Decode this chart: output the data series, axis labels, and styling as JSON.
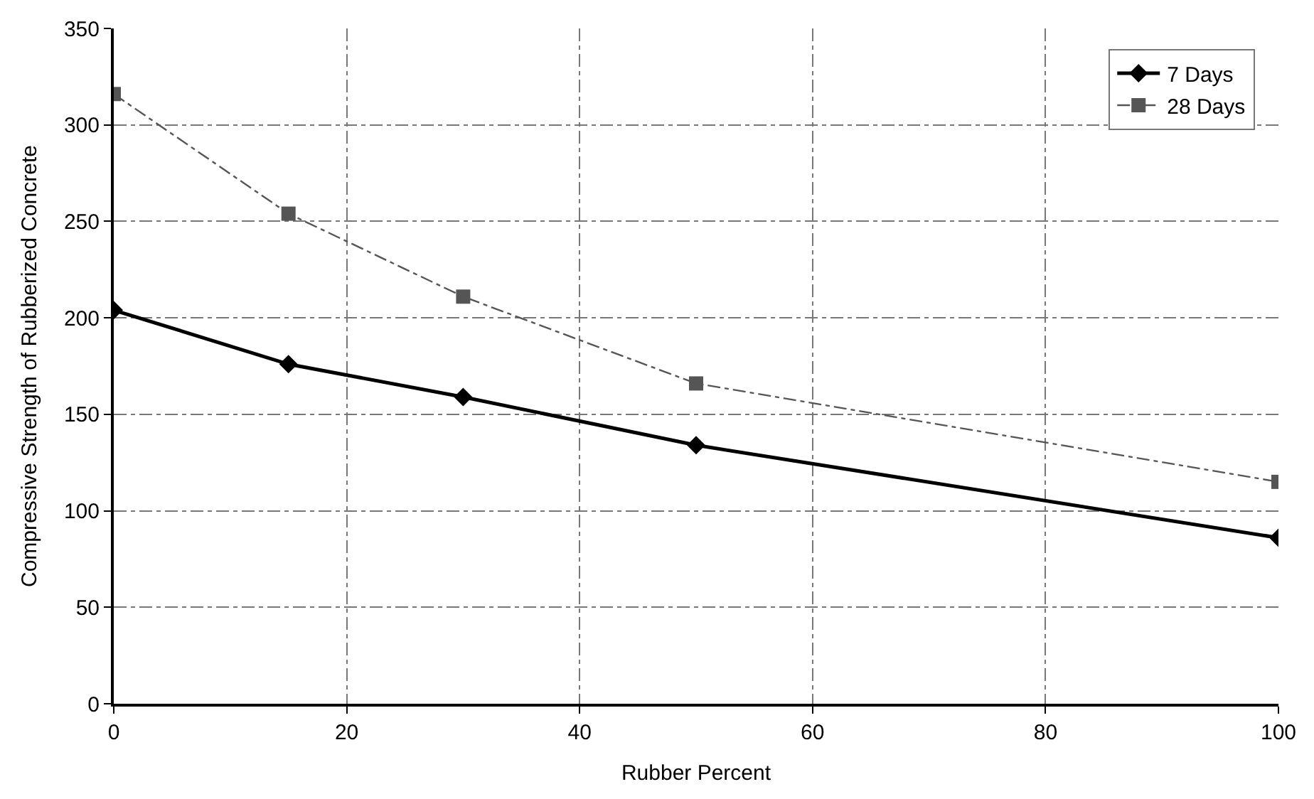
{
  "chart_data": {
    "type": "line",
    "xlabel": "Rubber Percent",
    "ylabel": "Compressive Strength of Rubberized Concrete",
    "x": [
      0,
      15,
      30,
      50,
      100
    ],
    "series": [
      {
        "name": "7 Days",
        "color": "#000000",
        "values": [
          204,
          176,
          159,
          134,
          86
        ],
        "marker": "diamond",
        "line_style": "solid"
      },
      {
        "name": "28 Days",
        "color": "#555555",
        "values": [
          316,
          254,
          211,
          166,
          115
        ],
        "marker": "square",
        "line_style": "dashed"
      }
    ],
    "xlim": [
      0,
      100
    ],
    "xticks": [
      0,
      20,
      40,
      60,
      80,
      100
    ],
    "ylim": [
      0,
      350
    ],
    "yticks": [
      0,
      50,
      100,
      150,
      200,
      250,
      300,
      350
    ],
    "grid": true,
    "legend": "top right"
  }
}
